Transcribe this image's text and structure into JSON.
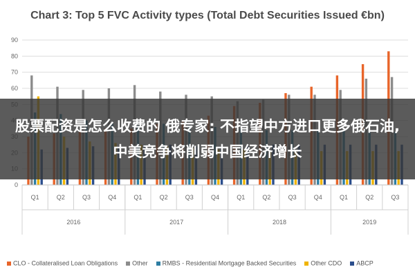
{
  "chart_data": {
    "type": "bar",
    "title": "Chart 3: Top 5 FVC Activity types (Total Debt Securities Issued €bn)",
    "ylim": [
      0,
      90
    ],
    "yticks": [
      0,
      10,
      20,
      30,
      40,
      50,
      60,
      70,
      80,
      90
    ],
    "grid": true,
    "legend_position": "bottom",
    "categories": [
      "Q1",
      "Q2",
      "Q3",
      "Q4",
      "Q1",
      "Q2",
      "Q3",
      "Q4",
      "Q1",
      "Q2",
      "Q3",
      "Q4",
      "Q1",
      "Q2",
      "Q3"
    ],
    "groups": [
      {
        "label": "2016",
        "count": 4
      },
      {
        "label": "2017",
        "count": 4
      },
      {
        "label": "2018",
        "count": 4
      },
      {
        "label": "2019",
        "count": 3
      }
    ],
    "series": [
      {
        "name": "CLO - Collateralised Loan Obligations",
        "color": "#e8652a",
        "values": [
          30,
          32,
          33,
          35,
          35,
          38,
          40,
          43,
          49,
          51,
          57,
          61,
          68,
          75,
          83
        ]
      },
      {
        "name": "Other",
        "color": "#8c8c8c",
        "values": [
          68,
          61,
          59,
          60,
          62,
          58,
          56,
          55,
          52,
          53,
          56,
          56,
          59,
          66,
          67
        ]
      },
      {
        "name": "RMBS - Residential Mortgage Backed Securities",
        "color": "#2e7ea3",
        "values": [
          45,
          44,
          40,
          38,
          37,
          38,
          37,
          36,
          35,
          34,
          34,
          34,
          34,
          33,
          33
        ]
      },
      {
        "name": "Other CDO",
        "color": "#f0b400",
        "values": [
          55,
          30,
          27,
          26,
          25,
          24,
          23,
          22,
          22,
          21,
          21,
          21,
          21,
          21,
          21
        ]
      },
      {
        "name": "ABCP",
        "color": "#2b4e8c",
        "values": [
          22,
          23,
          24,
          24,
          25,
          25,
          24,
          24,
          24,
          25,
          25,
          25,
          25,
          25,
          25
        ]
      }
    ]
  },
  "overlay": {
    "text": "股票配资是怎么收费的 俄专家: 不指望中方进口更多俄石油, 中美竞争将削弱中国经济增长"
  }
}
